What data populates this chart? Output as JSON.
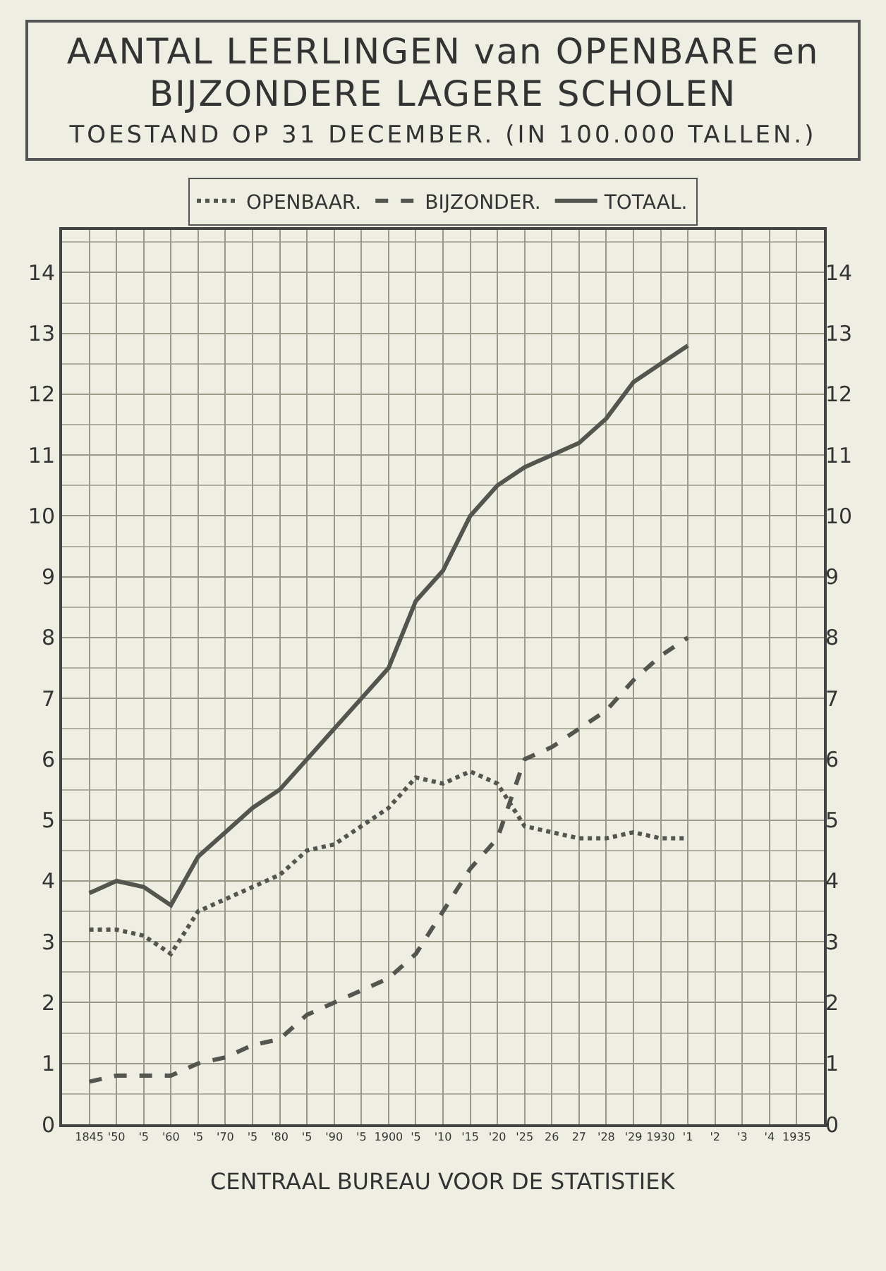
{
  "chart_data": {
    "type": "line",
    "title": "AANTAL LEERLINGEN van OPENBARE en BIJZONDERE LAGERE SCHOLEN",
    "subtitle": "TOESTAND OP 31 DECEMBER. (IN 100.000 TALLEN.)",
    "categories": [
      "1845",
      "'50",
      "'5",
      "'60",
      "'5",
      "'70",
      "'5",
      "'80",
      "'5",
      "'90",
      "'5",
      "1900",
      "'5",
      "'10",
      "'15",
      "'20",
      "'25",
      "26",
      "27",
      "'28",
      "'29",
      "1930",
      "'1",
      "'2",
      "'3",
      "'4",
      "1935"
    ],
    "series": [
      {
        "name": "OPENBAAR.",
        "color": "#555550",
        "line_style": "dotted",
        "values": [
          3.2,
          3.2,
          3.1,
          2.8,
          3.5,
          3.7,
          3.9,
          4.1,
          4.5,
          4.6,
          4.9,
          5.2,
          5.7,
          5.6,
          5.8,
          5.6,
          4.9,
          4.8,
          4.7,
          4.7,
          4.8,
          4.7,
          4.7,
          null,
          null,
          null,
          null
        ]
      },
      {
        "name": "BIJZONDER.",
        "color": "#555550",
        "line_style": "dashed",
        "values": [
          0.7,
          0.8,
          0.8,
          0.8,
          1.0,
          1.1,
          1.3,
          1.4,
          1.8,
          2.0,
          2.2,
          2.4,
          2.8,
          3.5,
          4.2,
          4.7,
          6.0,
          6.2,
          6.5,
          6.8,
          7.3,
          7.7,
          8.0,
          null,
          null,
          null,
          null
        ]
      },
      {
        "name": "TOTAAL.",
        "color": "#555550",
        "line_style": "solid",
        "values": [
          3.8,
          4.0,
          3.9,
          3.6,
          4.4,
          4.8,
          5.2,
          5.5,
          6.0,
          6.5,
          7.0,
          7.5,
          8.6,
          9.1,
          10.0,
          10.5,
          10.8,
          11.0,
          11.2,
          11.6,
          12.2,
          12.5,
          12.8,
          null,
          null,
          null,
          null
        ]
      }
    ],
    "ylim": [
      0,
      14.7
    ],
    "yticks": [
      0,
      1,
      2,
      3,
      4,
      5,
      6,
      7,
      8,
      9,
      10,
      11,
      12,
      13,
      14
    ],
    "y2lim": [
      0,
      14.7
    ],
    "y2ticks": [
      0,
      1,
      2,
      3,
      4,
      5,
      6,
      7,
      8,
      9,
      10,
      11,
      12,
      13,
      14
    ],
    "grid": true,
    "legend": "top",
    "marker": "none",
    "annotations": [
      "CENTRAAL BUREAU VOOR DE STATISTIEK"
    ]
  }
}
